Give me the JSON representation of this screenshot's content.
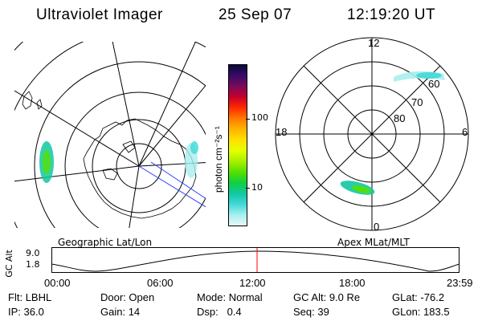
{
  "header": {
    "instrument": "Ultraviolet Imager",
    "date": "25 Sep 07",
    "time": "12:19:20 UT"
  },
  "left_panel": {
    "label": "Geographic Lat/Lon"
  },
  "right_panel": {
    "label": "Apex MLat/MLT",
    "mlt_labels": {
      "top": "12",
      "bottom": "0",
      "left": "18",
      "right": "6"
    },
    "mlat_labels": [
      "60",
      "70",
      "80"
    ]
  },
  "colorbar": {
    "unit_label": "photon cm⁻²s⁻¹",
    "ticks": [
      "100",
      "10"
    ],
    "colors": [
      "#0a0a3a",
      "#3a0a6a",
      "#7a0a5a",
      "#c8002a",
      "#ff2a00",
      "#ff7a00",
      "#ffb400",
      "#ffe000",
      "#e6ff00",
      "#a8f000",
      "#55e000",
      "#10d040",
      "#10c8a0",
      "#40d8d8",
      "#a8eeee",
      "#e8f8f8"
    ]
  },
  "altitude_strip": {
    "ylabel": "GC Alt",
    "yticks": [
      "9.0",
      "1.8"
    ],
    "xticks": [
      "00:00",
      "06:00",
      "12:00",
      "18:00",
      "23:59"
    ],
    "marker_color": "#ff0000"
  },
  "status": {
    "row1": [
      {
        "label": "Flt:",
        "value": "LBHL"
      },
      {
        "label": "Door:",
        "value": "Open"
      },
      {
        "label": "Mode:",
        "value": "Normal"
      },
      {
        "label": "GC Alt:",
        "value": "9.0 Re"
      },
      {
        "label": "GLat:",
        "value": "-76.2"
      }
    ],
    "row2": [
      {
        "label": "IP:",
        "value": "36.0"
      },
      {
        "label": "Gain:",
        "value": "14"
      },
      {
        "label": "Dsp:",
        "value": "0.4"
      },
      {
        "label": "Seq:",
        "value": "39"
      },
      {
        "label": "GLon:",
        "value": "183.5"
      }
    ]
  }
}
